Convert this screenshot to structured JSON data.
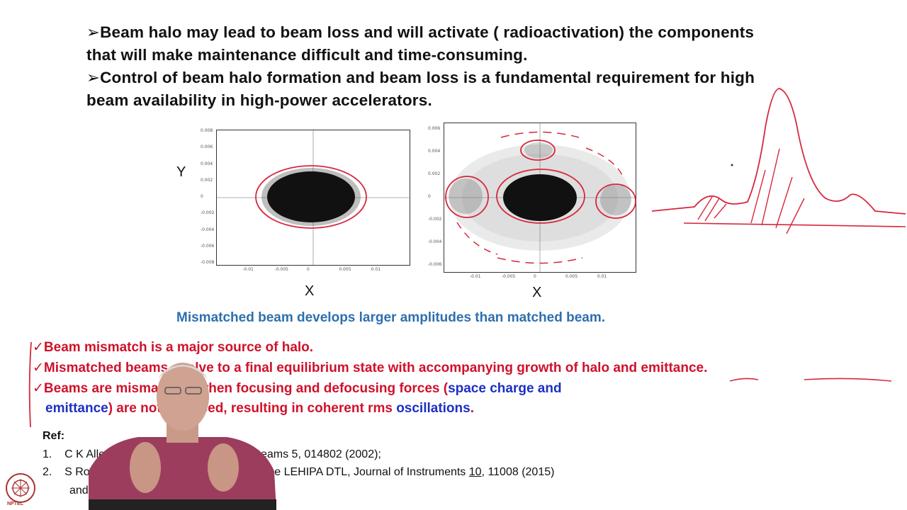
{
  "top_bullets": [
    {
      "arrow": "➢",
      "line1": "Beam halo may lead to beam loss and will activate ( radioactivation) the components",
      "line2": "that will make maintenance difficult and time-consuming."
    },
    {
      "arrow": "➢",
      "line1": "Control of beam halo formation and beam loss is a fundamental requirement for high",
      "line2": "beam availability in high-power accelerators."
    }
  ],
  "plots": {
    "left": {
      "y_axis_label": "Y",
      "x_axis_label": "X",
      "y_ticks": [
        "0.008",
        "0.006",
        "0.004",
        "0.002",
        "0",
        "-0.002",
        "-0.004",
        "-0.006",
        "-0.008"
      ],
      "x_ticks": [
        "-0.01",
        "-0.005",
        "0",
        "0.005",
        "0.01"
      ]
    },
    "right": {
      "x_axis_label": "X",
      "y_ticks": [
        "0.006",
        "0.004",
        "0.002",
        "0",
        "-0.002",
        "-0.004",
        "-0.006"
      ],
      "x_ticks": [
        "-0.01",
        "-0.005",
        "0",
        "0.005",
        "0.01"
      ]
    }
  },
  "caption": "Mismatched beam develops larger amplitudes than matched beam.",
  "check_mark": "✓",
  "red_bullets": {
    "b1": "Beam mismatch is a major source of halo.",
    "b2": "Mismatched beams evolve to a final equilibrium state with  accompanying growth of halo and emittance.",
    "b3_pre": "Beams are mismatched when focusing and defocusing forces (",
    "b3_blue": "space charge and",
    "b4_blue": "emittance",
    "b4_mid": ") are not balanced, resulting in coherent rms ",
    "b4_blue2": "oscillations",
    "b4_end": "."
  },
  "references": {
    "heading": "Ref:",
    "r1_num": "1.",
    "r1_text": "C K Allen et al., Phys. Rev. ST Accel. Beams 5, 014802 (2002);",
    "r2_num": "2.",
    "r2_text_pre": "S Roy et al., Beam dynamics studies of the LEHIPA DTL, Journal of Instruments ",
    "r2_vol": "10",
    "r2_text_post": ", 11008 (2015)",
    "r2_line2": "and references therein"
  },
  "logo_text": "NPTEL",
  "colors": {
    "red": "#d0112b",
    "blue": "#1c2fc4",
    "caption_blue": "#2e6fae",
    "annotation_red": "#d6283c"
  }
}
